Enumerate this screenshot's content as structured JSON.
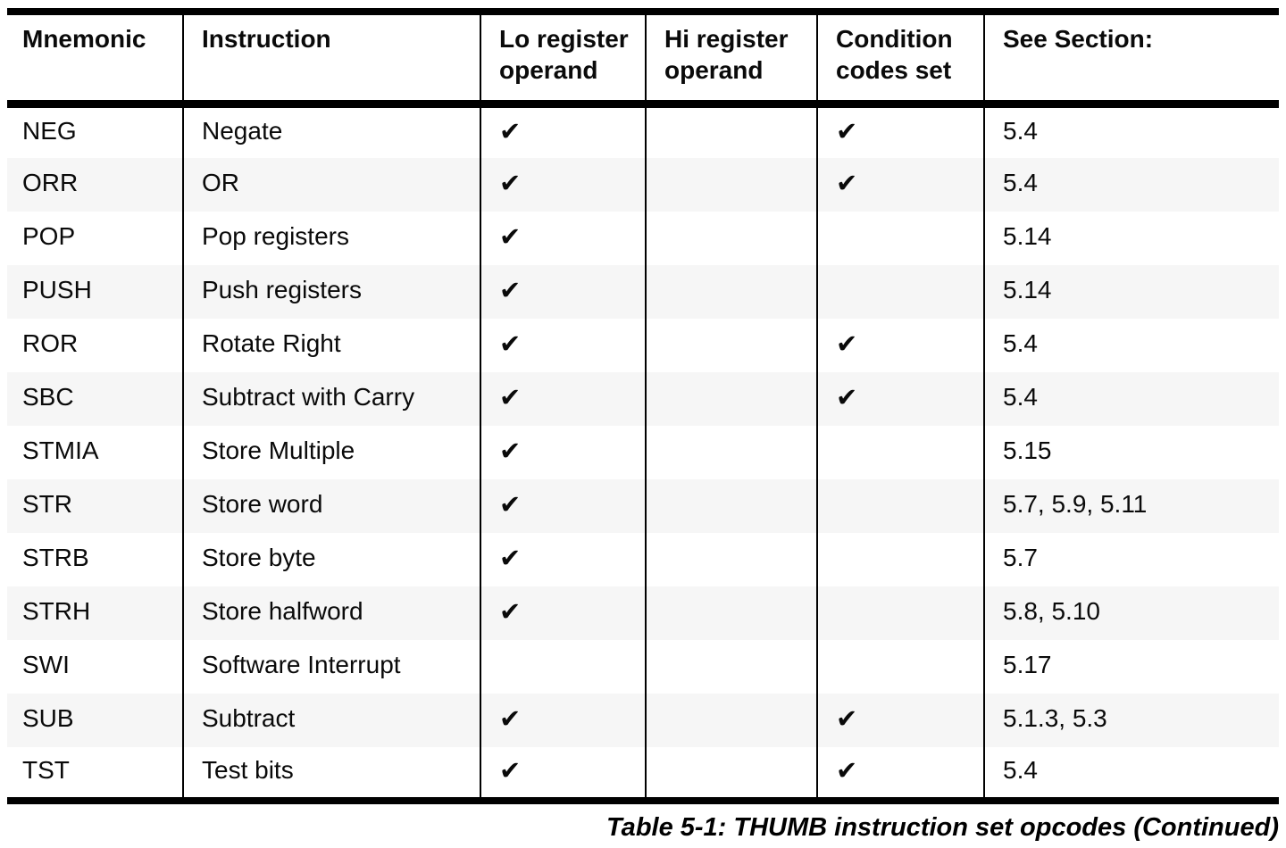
{
  "table": {
    "caption": "Table 5-1: THUMB instruction set opcodes (Continued)",
    "columns": [
      "Mnemonic",
      "Instruction",
      "Lo register operand",
      "Hi register operand",
      "Condition codes set",
      "See Section:"
    ],
    "check_glyph": "✔",
    "rows": [
      {
        "mnemonic": "NEG",
        "instruction": "Negate",
        "lo_check": "✔",
        "hi_check": "",
        "cond_check": "✔",
        "section": "5.4"
      },
      {
        "mnemonic": "ORR",
        "instruction": "OR",
        "lo_check": "✔",
        "hi_check": "",
        "cond_check": "✔",
        "section": "5.4"
      },
      {
        "mnemonic": "POP",
        "instruction": "Pop registers",
        "lo_check": "✔",
        "hi_check": "",
        "cond_check": "",
        "section": "5.14"
      },
      {
        "mnemonic": "PUSH",
        "instruction": "Push registers",
        "lo_check": "✔",
        "hi_check": "",
        "cond_check": "",
        "section": "5.14"
      },
      {
        "mnemonic": "ROR",
        "instruction": "Rotate Right",
        "lo_check": "✔",
        "hi_check": "",
        "cond_check": "✔",
        "section": "5.4"
      },
      {
        "mnemonic": "SBC",
        "instruction": "Subtract with Carry",
        "lo_check": "✔",
        "hi_check": "",
        "cond_check": "✔",
        "section": "5.4"
      },
      {
        "mnemonic": "STMIA",
        "instruction": "Store Multiple",
        "lo_check": "✔",
        "hi_check": "",
        "cond_check": "",
        "section": "5.15"
      },
      {
        "mnemonic": "STR",
        "instruction": "Store word",
        "lo_check": "✔",
        "hi_check": "",
        "cond_check": "",
        "section": "5.7, 5.9, 5.11"
      },
      {
        "mnemonic": "STRB",
        "instruction": "Store byte",
        "lo_check": "✔",
        "hi_check": "",
        "cond_check": "",
        "section": "5.7"
      },
      {
        "mnemonic": "STRH",
        "instruction": "Store halfword",
        "lo_check": "✔",
        "hi_check": "",
        "cond_check": "",
        "section": "5.8, 5.10"
      },
      {
        "mnemonic": "SWI",
        "instruction": "Software Interrupt",
        "lo_check": "",
        "hi_check": "",
        "cond_check": "",
        "section": "5.17"
      },
      {
        "mnemonic": "SUB",
        "instruction": "Subtract",
        "lo_check": "✔",
        "hi_check": "",
        "cond_check": "✔",
        "section": "5.1.3, 5.3"
      },
      {
        "mnemonic": "TST",
        "instruction": "Test bits",
        "lo_check": "✔",
        "hi_check": "",
        "cond_check": "✔",
        "section": "5.4"
      }
    ],
    "colors": {
      "row_stripe": "#f6f6f6",
      "rule": "#000000",
      "text": "#0a0a0a"
    }
  }
}
